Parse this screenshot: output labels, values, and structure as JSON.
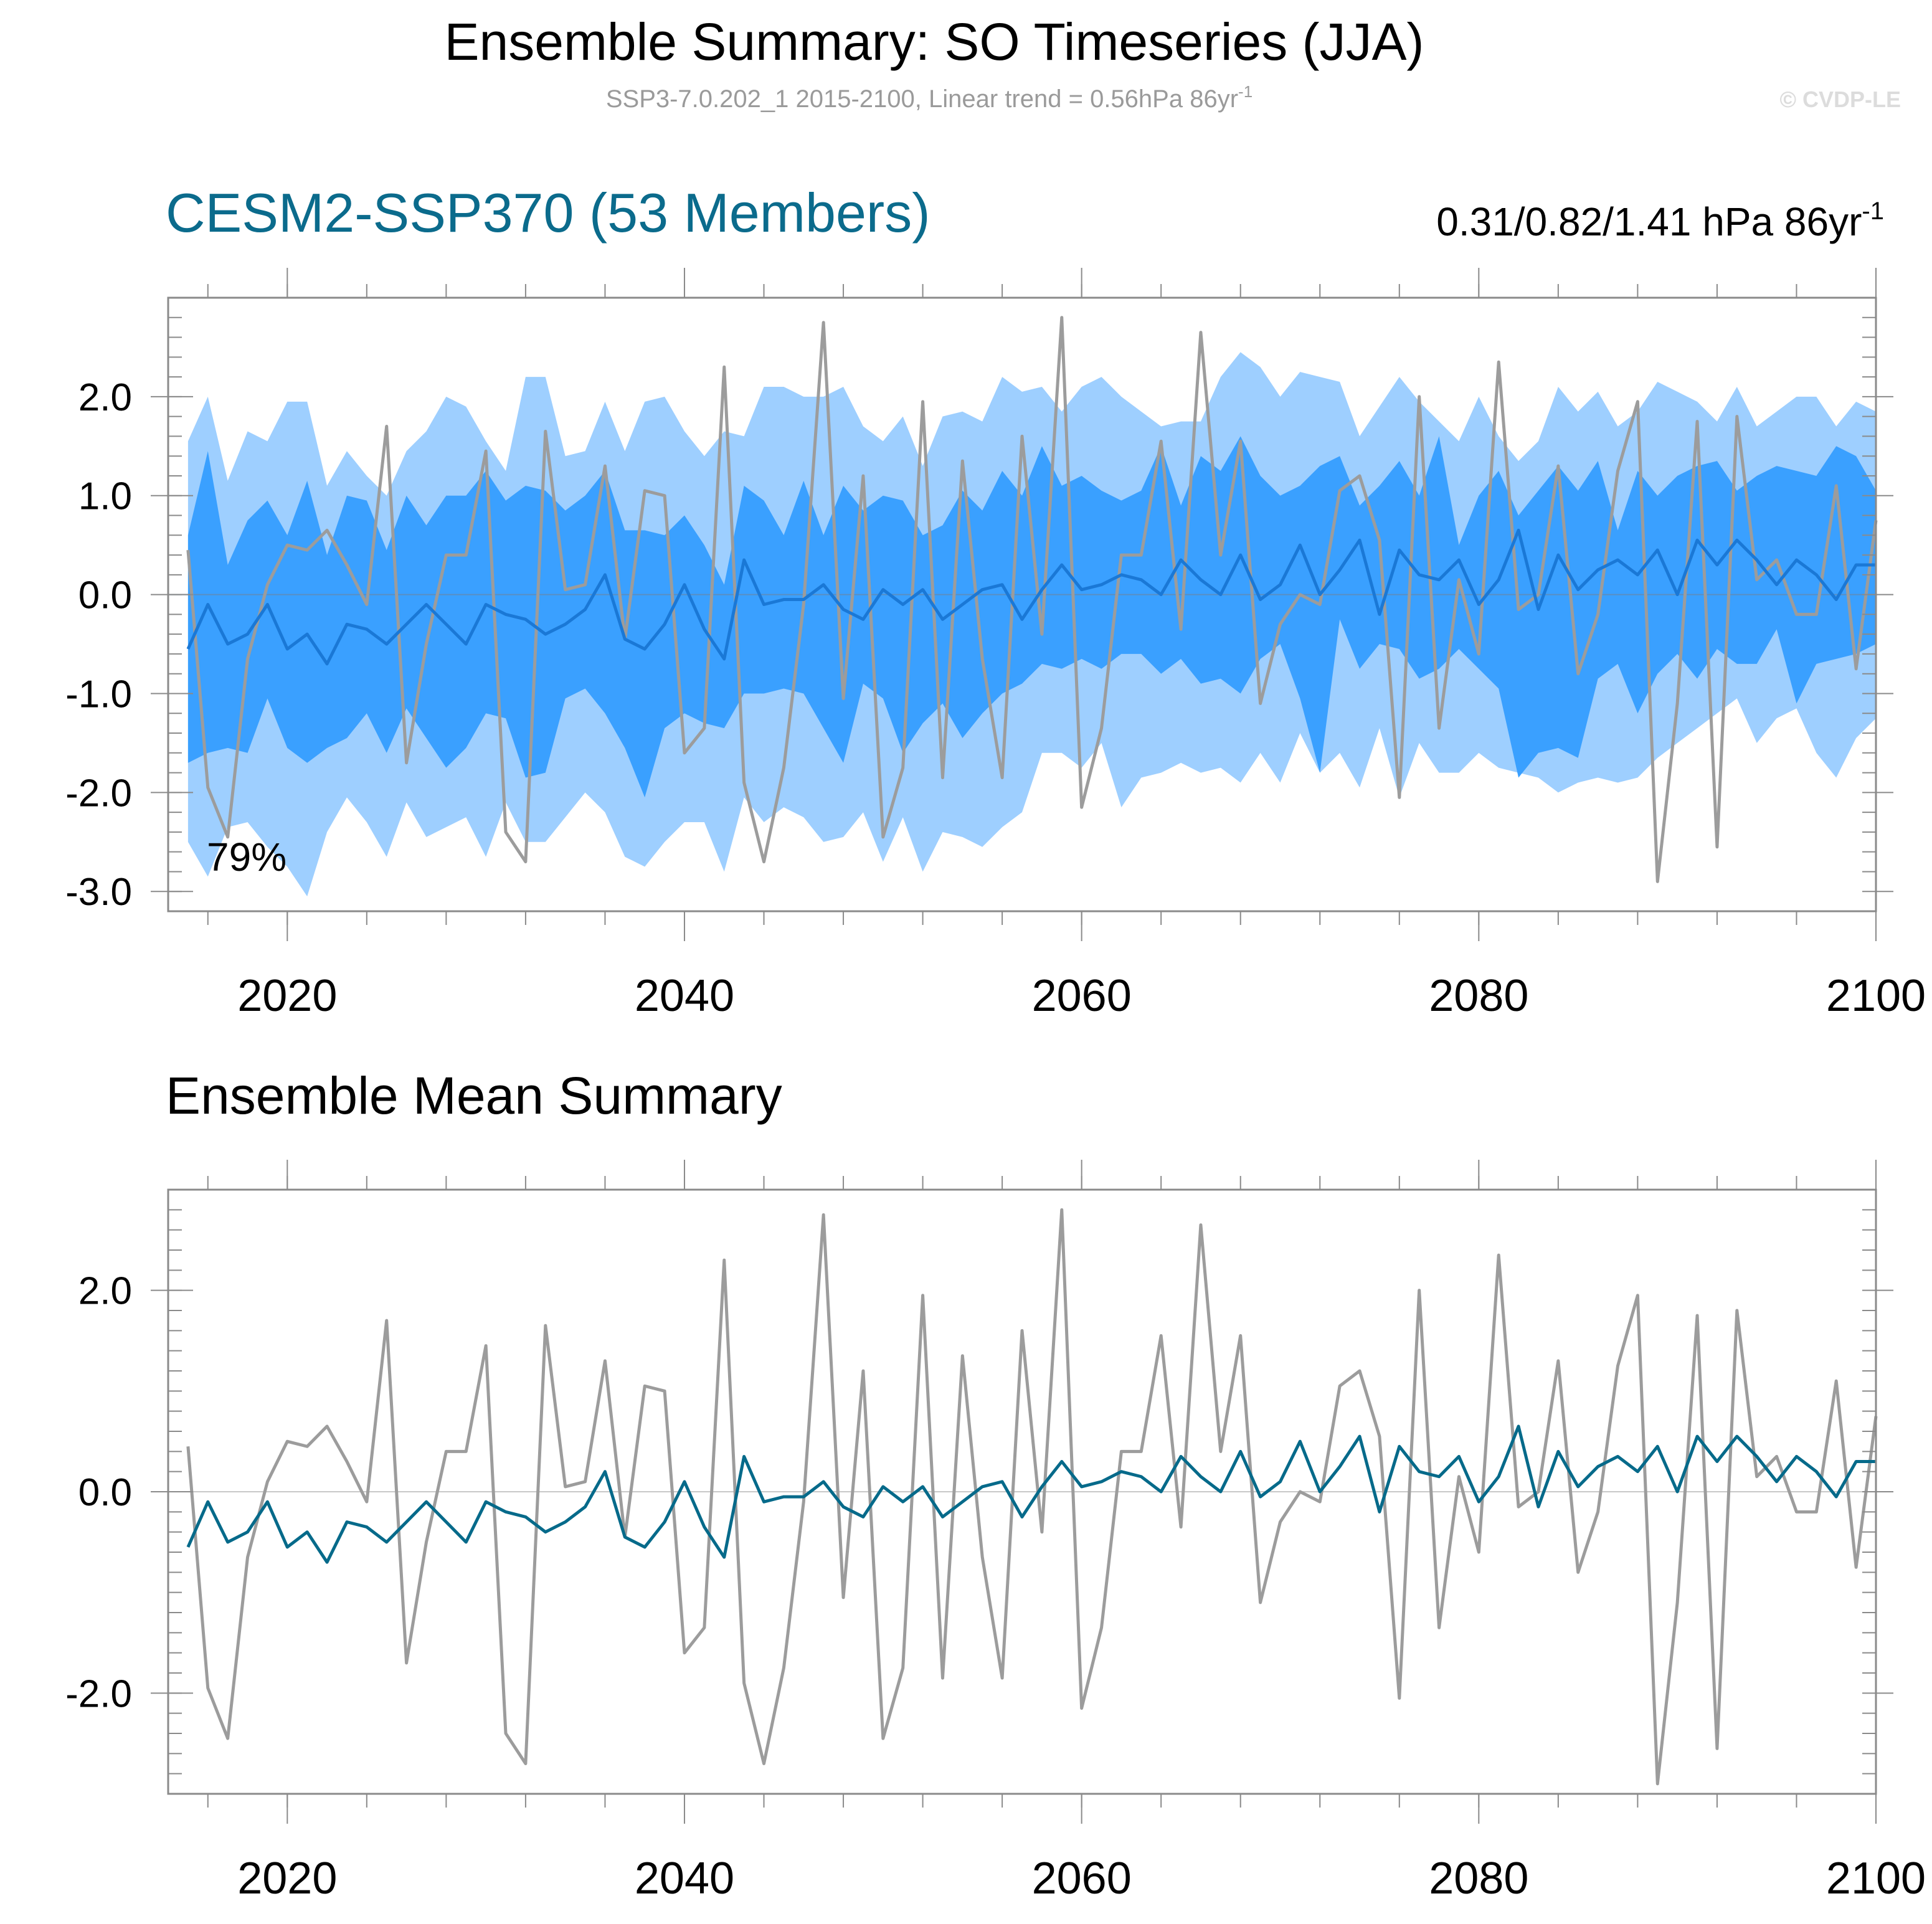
{
  "header": {
    "title": "Ensemble Summary: SO Timeseries (JJA)",
    "subtitle_main": "SSP3-7.0.202_1 2015-2100, Linear trend = 0.56hPa 86yr",
    "subtitle_sup": "-1",
    "copyright": "© CVDP-LE"
  },
  "colors": {
    "band_outer": "#9ecfff",
    "band_inner": "#3aa0ff",
    "ens_mean_top": "#1a78d6",
    "ens_mean_bottom": "#066a8a",
    "observation": "#9c9c9c",
    "panel1_title": "#0b6b8c"
  },
  "chart_data": [
    {
      "type": "area",
      "title": "CESM2-SSP370 (53 Members)",
      "right_label": "0.31/0.82/1.41 hPa 86yr",
      "right_label_sup": "-1",
      "annotation": "79%",
      "xlim": [
        2014,
        2100
      ],
      "ylim": [
        -3.2,
        3.0
      ],
      "x_ticks": [
        2020,
        2040,
        2060,
        2080,
        2100
      ],
      "x_tick_labels": [
        "2020",
        "2040",
        "2060",
        "2080",
        "2100"
      ],
      "y_ticks": [
        2.0,
        1.0,
        0.0,
        -1.0,
        -2.0,
        -3.0
      ],
      "y_tick_labels": [
        "2.0",
        "1.0",
        "0.0",
        "-1.0",
        "-2.0",
        "-3.0"
      ],
      "x_start": 2015,
      "x_step": 1,
      "series": [
        {
          "name": "",
          "role": "outer_band_upper",
          "values": [
            1.55,
            2.0,
            1.15,
            1.65,
            1.55,
            1.95,
            1.95,
            1.1,
            1.45,
            1.2,
            1.0,
            1.45,
            1.65,
            2.0,
            1.9,
            1.55,
            1.25,
            2.2,
            2.2,
            1.4,
            1.45,
            1.95,
            1.45,
            1.95,
            2.0,
            1.65,
            1.4,
            1.65,
            1.6,
            2.1,
            2.1,
            2.0,
            2.0,
            2.1,
            1.7,
            1.55,
            1.8,
            1.3,
            1.8,
            1.85,
            1.75,
            2.2,
            2.05,
            2.1,
            1.85,
            2.1,
            2.2,
            2.0,
            1.85,
            1.7,
            1.75,
            1.75,
            2.2,
            2.45,
            2.3,
            2.0,
            2.25,
            2.2,
            2.15,
            1.6,
            1.9,
            2.2,
            1.95,
            1.75,
            1.55,
            2.0,
            1.6,
            1.35,
            1.55,
            2.1,
            1.85,
            2.05,
            1.7,
            1.85,
            2.15,
            2.05,
            1.95,
            1.75,
            2.1,
            1.7,
            1.85,
            2.0,
            2.0,
            1.7,
            1.95,
            1.85
          ]
        },
        {
          "name": "",
          "role": "inner_band_upper",
          "values": [
            0.6,
            1.45,
            0.3,
            0.75,
            0.95,
            0.6,
            1.15,
            0.4,
            1.0,
            0.95,
            0.45,
            1.0,
            0.7,
            1.0,
            1.0,
            1.25,
            0.95,
            1.1,
            1.05,
            0.85,
            1.0,
            1.25,
            0.65,
            0.65,
            0.6,
            0.8,
            0.5,
            0.1,
            1.1,
            0.95,
            0.6,
            1.15,
            0.6,
            1.1,
            0.85,
            1.0,
            0.95,
            0.6,
            0.7,
            1.05,
            0.85,
            1.25,
            1.0,
            1.5,
            1.1,
            1.2,
            1.05,
            0.95,
            1.05,
            1.5,
            0.9,
            1.4,
            1.25,
            1.6,
            1.2,
            1.0,
            1.1,
            1.3,
            1.4,
            0.9,
            1.1,
            1.35,
            1.0,
            1.6,
            0.5,
            1.0,
            1.25,
            0.8,
            1.05,
            1.3,
            1.05,
            1.35,
            0.65,
            1.25,
            1.0,
            1.2,
            1.3,
            1.35,
            1.05,
            1.2,
            1.3,
            1.25,
            1.2,
            1.5,
            1.4,
            1.05
          ]
        },
        {
          "name": "",
          "role": "inner_band_lower",
          "values": [
            -1.7,
            -1.6,
            -1.55,
            -1.6,
            -1.05,
            -1.55,
            -1.7,
            -1.55,
            -1.45,
            -1.2,
            -1.6,
            -1.15,
            -1.45,
            -1.75,
            -1.55,
            -1.2,
            -1.25,
            -1.85,
            -1.8,
            -1.05,
            -0.95,
            -1.2,
            -1.55,
            -2.05,
            -1.35,
            -1.2,
            -1.3,
            -1.35,
            -1.0,
            -1.0,
            -0.95,
            -1.0,
            -1.35,
            -1.7,
            -0.9,
            -1.05,
            -1.6,
            -1.3,
            -1.1,
            -1.45,
            -1.2,
            -1.0,
            -0.9,
            -0.7,
            -0.75,
            -0.65,
            -0.75,
            -0.6,
            -0.6,
            -0.8,
            -0.65,
            -0.9,
            -0.85,
            -1.0,
            -0.65,
            -0.5,
            -1.05,
            -1.8,
            -0.25,
            -0.75,
            -0.5,
            -0.55,
            -0.85,
            -0.75,
            -0.55,
            -0.75,
            -0.95,
            -1.85,
            -1.6,
            -1.55,
            -1.65,
            -0.85,
            -0.7,
            -1.2,
            -0.8,
            -0.6,
            -0.85,
            -0.55,
            -0.7,
            -0.7,
            -0.35,
            -1.1,
            -0.7,
            -0.65,
            -0.6,
            -0.5
          ]
        },
        {
          "name": "",
          "role": "outer_band_lower",
          "values": [
            -2.5,
            -2.85,
            -2.35,
            -2.3,
            -2.55,
            -2.75,
            -3.05,
            -2.4,
            -2.05,
            -2.3,
            -2.65,
            -2.1,
            -2.45,
            -2.35,
            -2.25,
            -2.65,
            -2.1,
            -2.5,
            -2.5,
            -2.25,
            -2.0,
            -2.2,
            -2.65,
            -2.75,
            -2.5,
            -2.3,
            -2.3,
            -2.8,
            -2.05,
            -2.3,
            -2.15,
            -2.25,
            -2.5,
            -2.45,
            -2.2,
            -2.7,
            -2.25,
            -2.8,
            -2.4,
            -2.45,
            -2.55,
            -2.35,
            -2.2,
            -1.6,
            -1.6,
            -1.75,
            -1.5,
            -2.15,
            -1.85,
            -1.8,
            -1.7,
            -1.8,
            -1.75,
            -1.9,
            -1.6,
            -1.9,
            -1.4,
            -1.8,
            -1.6,
            -1.95,
            -1.35,
            -2.05,
            -1.5,
            -1.8,
            -1.8,
            -1.6,
            -1.75,
            -1.8,
            -1.85,
            -2.0,
            -1.9,
            -1.85,
            -1.9,
            -1.85,
            -1.65,
            -1.5,
            -1.35,
            -1.2,
            -1.05,
            -1.5,
            -1.25,
            -1.15,
            -1.6,
            -1.85,
            -1.45,
            -1.25
          ]
        },
        {
          "name": "",
          "role": "ensemble_mean",
          "values": [
            -0.55,
            -0.1,
            -0.5,
            -0.4,
            -0.1,
            -0.55,
            -0.4,
            -0.7,
            -0.3,
            -0.35,
            -0.5,
            -0.3,
            -0.1,
            -0.3,
            -0.5,
            -0.1,
            -0.2,
            -0.25,
            -0.4,
            -0.3,
            -0.15,
            0.2,
            -0.45,
            -0.55,
            -0.3,
            0.1,
            -0.35,
            -0.65,
            0.35,
            -0.1,
            -0.05,
            -0.05,
            0.1,
            -0.15,
            -0.25,
            0.05,
            -0.1,
            0.05,
            -0.25,
            -0.1,
            0.05,
            0.1,
            -0.25,
            0.05,
            0.3,
            0.05,
            0.1,
            0.2,
            0.15,
            0.0,
            0.35,
            0.15,
            0.0,
            0.4,
            -0.05,
            0.1,
            0.5,
            0.0,
            0.25,
            0.55,
            -0.2,
            0.45,
            0.2,
            0.15,
            0.35,
            -0.1,
            0.15,
            0.65,
            -0.15,
            0.4,
            0.05,
            0.25,
            0.35,
            0.2,
            0.45,
            0.0,
            0.55,
            0.3,
            0.55,
            0.35,
            0.1,
            0.35,
            0.2,
            -0.05,
            0.3,
            0.3
          ]
        },
        {
          "name": "",
          "role": "observation",
          "values": [
            0.45,
            -1.95,
            -2.45,
            -0.65,
            0.1,
            0.5,
            0.45,
            0.65,
            0.3,
            -0.1,
            1.7,
            -1.7,
            -0.5,
            0.4,
            0.4,
            1.45,
            -2.4,
            -2.7,
            1.65,
            0.05,
            0.1,
            1.3,
            -0.45,
            1.05,
            1.0,
            -1.6,
            -1.35,
            2.3,
            -1.9,
            -2.7,
            -1.75,
            -0.1,
            2.75,
            -1.05,
            1.2,
            -2.45,
            -1.75,
            1.95,
            -1.85,
            1.35,
            -0.65,
            -1.85,
            1.6,
            -0.4,
            2.8,
            -2.15,
            -1.35,
            0.4,
            0.4,
            1.55,
            -0.35,
            2.65,
            0.4,
            1.55,
            -1.1,
            -0.3,
            0.0,
            -0.1,
            1.05,
            1.2,
            0.55,
            -2.05,
            2.0,
            -1.35,
            0.15,
            -0.6,
            2.35,
            -0.15,
            0.0,
            1.3,
            -0.8,
            -0.2,
            1.25,
            1.95,
            -2.9,
            -1.1,
            1.75,
            -2.55,
            1.8,
            0.15,
            0.35,
            -0.2,
            -0.2,
            1.1,
            -0.75,
            0.75
          ]
        }
      ]
    },
    {
      "type": "line",
      "title": "Ensemble Mean Summary",
      "xlim": [
        2014,
        2100
      ],
      "ylim": [
        -3.0,
        3.0
      ],
      "x_ticks": [
        2020,
        2040,
        2060,
        2080,
        2100
      ],
      "x_tick_labels": [
        "2020",
        "2040",
        "2060",
        "2080",
        "2100"
      ],
      "y_ticks": [
        2.0,
        0.0,
        -2.0
      ],
      "y_tick_labels": [
        "2.0",
        "0.0",
        "-2.0"
      ],
      "x_start": 2015,
      "x_step": 1,
      "series": [
        {
          "name": "",
          "role": "observation",
          "same_as": "panel1.observation"
        },
        {
          "name": "",
          "role": "ensemble_mean",
          "same_as": "panel1.ensemble_mean"
        }
      ]
    }
  ]
}
